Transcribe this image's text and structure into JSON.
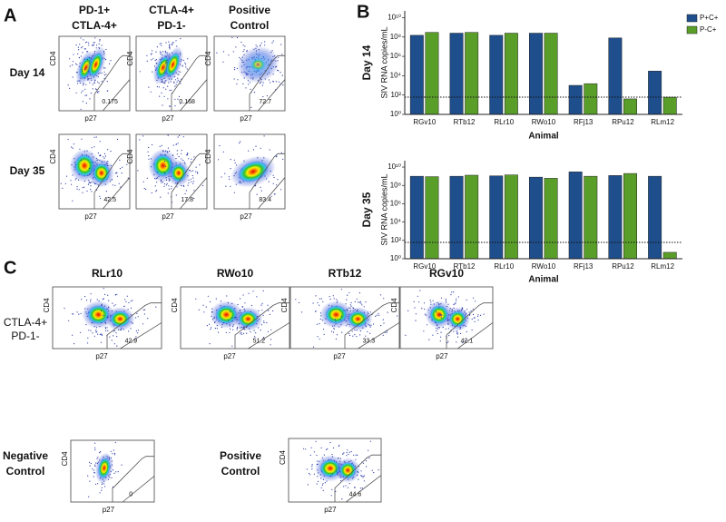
{
  "panel_labels": [
    "A",
    "B",
    "C"
  ],
  "flow_axes": {
    "x": "p27",
    "y": "CD4"
  },
  "panel_a": {
    "columns": [
      [
        "PD-1+",
        "CTLA-4+"
      ],
      [
        "CTLA-4+",
        "PD-1-"
      ],
      [
        "Positive",
        "Control"
      ]
    ],
    "rows": [
      {
        "label": "Day 14",
        "gates": [
          "0.175",
          "0.168",
          "72.7"
        ]
      },
      {
        "label": "Day 35",
        "gates": [
          "42.5",
          "17.8",
          "83.4"
        ]
      }
    ]
  },
  "chart_data": [
    {
      "type": "bar",
      "title": "Day 14",
      "y_label": "SIV RNA copies/mL",
      "x_label": "Animal",
      "categories": [
        "RGv10",
        "RTb12",
        "RLr10",
        "RWo10",
        "RFj13",
        "RPu12",
        "RLm12"
      ],
      "series": [
        {
          "name": "P+C+",
          "color": "#1f4e8c",
          "values": [
            150000000,
            250000000,
            150000000,
            250000000,
            1000,
            80000000,
            30000
          ]
        },
        {
          "name": "P-C+",
          "color": "#5a9e2a",
          "values": [
            300000000,
            300000000,
            250000000,
            250000000,
            1500,
            40,
            60
          ]
        }
      ],
      "log_scale": true,
      "ylim": [
        1,
        50000000000
      ],
      "yticks": [
        {
          "value": 1,
          "label": "10⁰"
        },
        {
          "value": 100,
          "label": "10²"
        },
        {
          "value": 10000,
          "label": "10⁴"
        },
        {
          "value": 1000000,
          "label": "10⁶"
        },
        {
          "value": 100000000,
          "label": "10⁸"
        },
        {
          "value": 10000000000,
          "label": "10¹⁰"
        }
      ],
      "reference_line": 60,
      "legend": "right"
    },
    {
      "type": "bar",
      "title": "Day 35",
      "y_label": "SIV RNA copies/mL",
      "x_label": "Animal",
      "categories": [
        "RGv10",
        "RTb12",
        "RLr10",
        "RWo10",
        "RFj13",
        "RPu12",
        "RLm12"
      ],
      "series": [
        {
          "color": "#1f4e8c",
          "values": [
            1000000000,
            1000000000,
            1100000000,
            800000000,
            3000000000,
            1200000000,
            1000000000
          ]
        },
        {
          "color": "#5a9e2a",
          "values": [
            900000000,
            1300000000,
            1400000000,
            600000000,
            1000000000,
            2000000000,
            5
          ]
        }
      ],
      "log_scale": true,
      "ylim": [
        1,
        50000000000
      ],
      "yticks": [
        {
          "value": 1,
          "label": "10⁰"
        },
        {
          "value": 100,
          "label": "10²"
        },
        {
          "value": 10000,
          "label": "10⁴"
        },
        {
          "value": 1000000,
          "label": "10⁶"
        },
        {
          "value": 100000000,
          "label": "10⁸"
        },
        {
          "value": 10000000000,
          "label": "10¹⁰"
        }
      ],
      "reference_line": 60
    }
  ],
  "panel_c": {
    "animals": [
      "RLr10",
      "RWo10",
      "RTb12",
      "RGv10"
    ],
    "row_label": [
      "CTLA-4+",
      "PD-1-"
    ],
    "gates": [
      "42.9",
      "51.2",
      "33.3",
      "42.1"
    ],
    "controls": [
      {
        "label": [
          "Negative",
          "Control"
        ],
        "gate": "0"
      },
      {
        "label": [
          "Positive",
          "Control"
        ],
        "gate": "44.6"
      }
    ]
  }
}
